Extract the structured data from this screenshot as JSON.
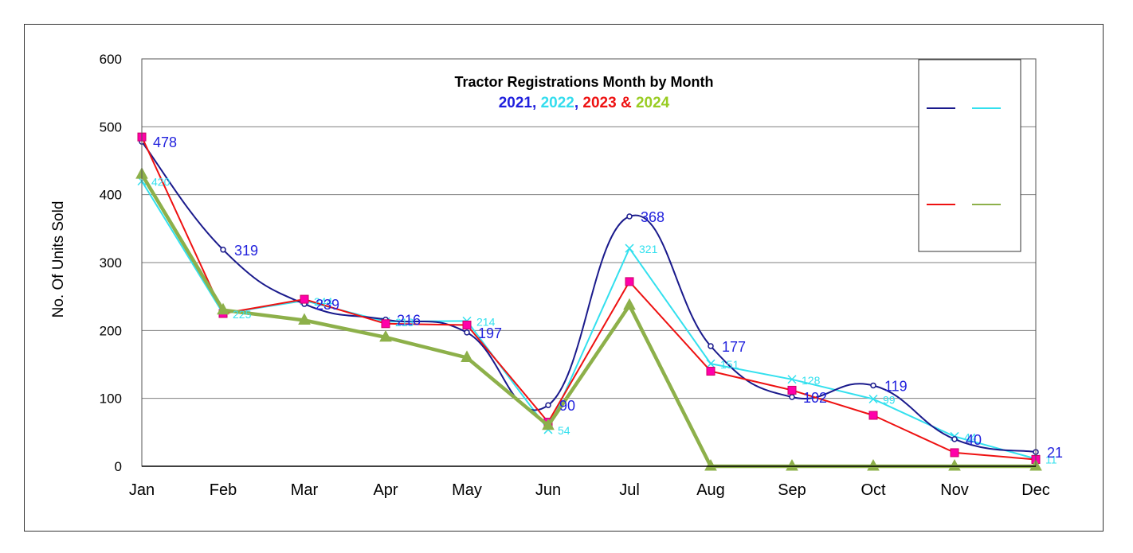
{
  "chart_data": {
    "type": "line",
    "title": "Tractor Registrations Month by Month",
    "subtitle_parts": [
      {
        "text": "2021",
        "color": "#1F1FDD"
      },
      {
        "text": ", ",
        "color": "#1F1FDD"
      },
      {
        "text": "2022",
        "color": "#33DDEE"
      },
      {
        "text": ", ",
        "color": "#1F1FDD"
      },
      {
        "text": "2023",
        "color": "#EE1111"
      },
      {
        "text": " & ",
        "color": "#EE1111"
      },
      {
        "text": "2024",
        "color": "#99CC22"
      }
    ],
    "ylabel": "No. Of Units Sold",
    "xlabel": "",
    "ylim": [
      0,
      600
    ],
    "yticks": [
      "0",
      "100",
      "200",
      "300",
      "400",
      "500",
      "600"
    ],
    "categories": [
      "Jan",
      "Feb",
      "Mar",
      "Apr",
      "May",
      "Jun",
      "Jul",
      "Aug",
      "Sep",
      "Oct",
      "Nov",
      "Dec"
    ],
    "grid": true,
    "legend_position": "top-right",
    "series": [
      {
        "key": "s2021",
        "color": "#1A1A8C",
        "label_color": "#2222DD",
        "marker": "circle",
        "width": 2,
        "smooth": true,
        "values": [
          478,
          319,
          239,
          216,
          197,
          90,
          368,
          177,
          102,
          119,
          40,
          21
        ],
        "labels": [
          "478",
          "319",
          "239",
          "216",
          "197",
          "90",
          "368",
          "177",
          "102",
          "119",
          "40",
          "21"
        ]
      },
      {
        "key": "s2022",
        "color": "#33E0EE",
        "label_color": "#33E0EE",
        "marker": "x",
        "width": 2,
        "smooth": false,
        "values": [
          420,
          225,
          244,
          213,
          214,
          54,
          321,
          151,
          128,
          99,
          44,
          11
        ],
        "labels": [
          "420",
          "225",
          "244",
          "213",
          "214",
          "54",
          "321",
          "151",
          "128",
          "99",
          "44",
          "11"
        ]
      },
      {
        "key": "s2023",
        "color": "#EE1111",
        "label_color": "#EE1111",
        "marker": "square",
        "width": 2,
        "smooth": false,
        "values": [
          485,
          225,
          246,
          210,
          208,
          65,
          272,
          140,
          112,
          75,
          20,
          10
        ],
        "labels": []
      },
      {
        "key": "s2024",
        "color": "#8DB04A",
        "label_color": "#8DB04A",
        "marker": "triangle",
        "width": 4.5,
        "smooth": false,
        "values": [
          430,
          230,
          215,
          190,
          160,
          60,
          237,
          0,
          0,
          0,
          0,
          0
        ],
        "labels": []
      }
    ]
  }
}
